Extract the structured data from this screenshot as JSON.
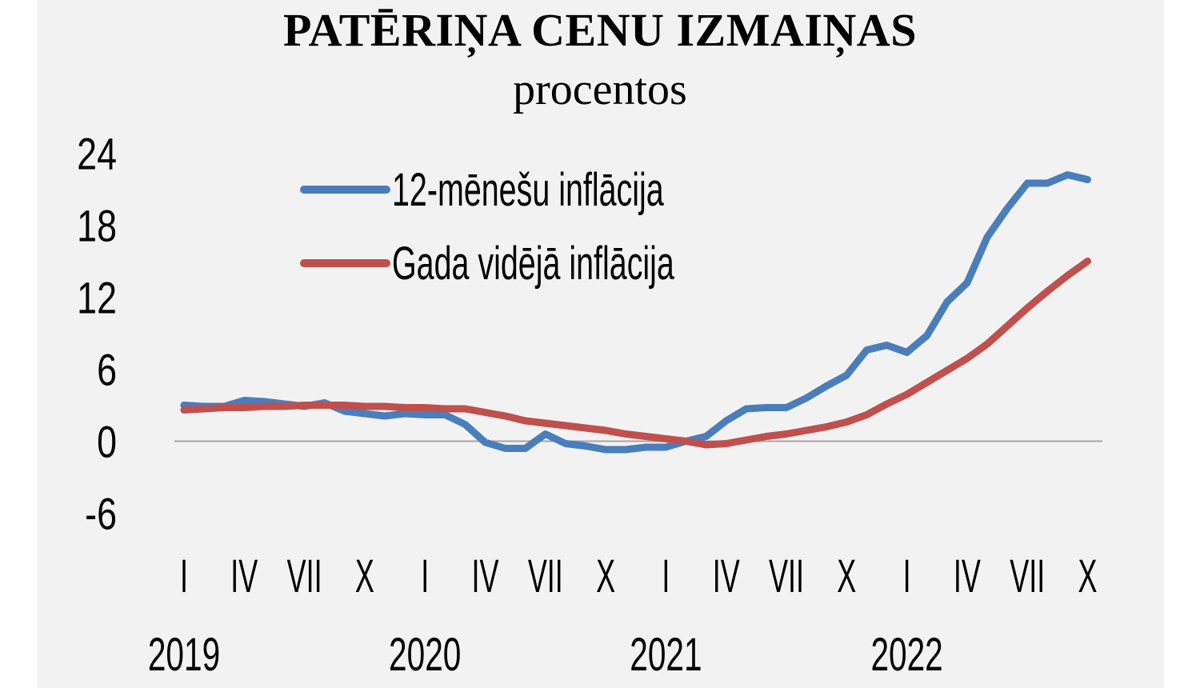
{
  "chart_data": {
    "type": "line",
    "title": "PATĒRIŅA CENU IZMAIŅAS",
    "subtitle": "procentos",
    "xlabel": "",
    "ylabel": "",
    "ylim": [
      -6,
      24
    ],
    "yticks": [
      24,
      18,
      12,
      6,
      0,
      -6
    ],
    "x_tick_labels": [
      "I",
      "IV",
      "VII",
      "X",
      "I",
      "IV",
      "VII",
      "X",
      "I",
      "IV",
      "VII",
      "X",
      "I",
      "IV",
      "VII",
      "X"
    ],
    "x_year_labels": [
      "2019",
      "2020",
      "2021",
      "2022"
    ],
    "grid": false,
    "zero_line": true,
    "legend_position": "upper-left-inside",
    "x": [
      "2019-01",
      "2019-02",
      "2019-03",
      "2019-04",
      "2019-05",
      "2019-06",
      "2019-07",
      "2019-08",
      "2019-09",
      "2019-10",
      "2019-11",
      "2019-12",
      "2020-01",
      "2020-02",
      "2020-03",
      "2020-04",
      "2020-05",
      "2020-06",
      "2020-07",
      "2020-08",
      "2020-09",
      "2020-10",
      "2020-11",
      "2020-12",
      "2021-01",
      "2021-02",
      "2021-03",
      "2021-04",
      "2021-05",
      "2021-06",
      "2021-07",
      "2021-08",
      "2021-09",
      "2021-10",
      "2021-11",
      "2021-12",
      "2022-01",
      "2022-02",
      "2022-03",
      "2022-04",
      "2022-05",
      "2022-06",
      "2022-07",
      "2022-08",
      "2022-09",
      "2022-10"
    ],
    "series": [
      {
        "name": "12-mēnešu inflācija",
        "color": "#4a7ebb",
        "values": [
          3.0,
          2.9,
          2.9,
          3.4,
          3.3,
          3.1,
          2.9,
          3.2,
          2.5,
          2.3,
          2.1,
          2.3,
          2.2,
          2.2,
          1.4,
          -0.1,
          -0.6,
          -0.6,
          0.6,
          -0.2,
          -0.4,
          -0.7,
          -0.7,
          -0.5,
          -0.5,
          0.0,
          0.4,
          1.7,
          2.7,
          2.8,
          2.8,
          3.6,
          4.6,
          5.5,
          7.6,
          8.0,
          7.4,
          8.8,
          11.6,
          13.2,
          17.0,
          19.4,
          21.5,
          21.5,
          22.2,
          21.8
        ]
      },
      {
        "name": "Gada vidējā inflācija",
        "color": "#c0504d",
        "values": [
          2.6,
          2.7,
          2.8,
          2.8,
          2.9,
          2.9,
          3.0,
          3.0,
          3.0,
          2.9,
          2.9,
          2.8,
          2.8,
          2.7,
          2.7,
          2.4,
          2.1,
          1.7,
          1.5,
          1.3,
          1.1,
          0.9,
          0.6,
          0.4,
          0.2,
          0.0,
          -0.3,
          -0.2,
          0.1,
          0.4,
          0.6,
          0.9,
          1.2,
          1.6,
          2.2,
          3.1,
          3.9,
          4.9,
          5.9,
          6.9,
          8.1,
          9.6,
          11.1,
          12.5,
          13.8,
          15.0
        ]
      }
    ]
  },
  "legend": {
    "items": [
      {
        "label": "12-mēnešu inflācija",
        "color": "#4a7ebb"
      },
      {
        "label": "Gada vidējā inflācija",
        "color": "#c0504d"
      }
    ]
  },
  "colors": {
    "background": "#f2f2f2",
    "page": "#ffffff",
    "zero_line": "#a6a6a6"
  }
}
